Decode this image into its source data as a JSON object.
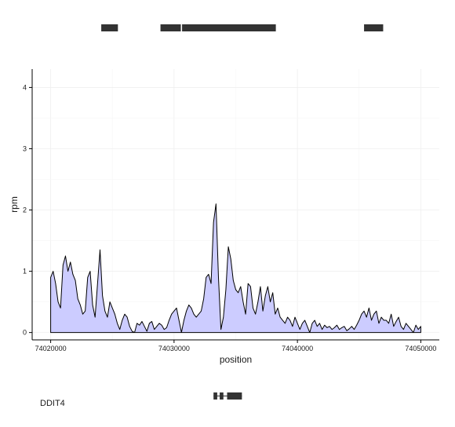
{
  "chart_data": {
    "type": "area",
    "xlabel": "position",
    "ylabel": "rpm",
    "xlim": [
      74018500,
      74051500
    ],
    "ylim": [
      -0.12,
      4.3
    ],
    "x_ticks": [
      74020000,
      74030000,
      74040000,
      74050000
    ],
    "x_tick_labels": [
      "74020000",
      "74030000",
      "74040000",
      "74050000"
    ],
    "y_ticks": [
      0,
      1,
      2,
      3,
      4
    ],
    "y_tick_labels": [
      "0",
      "1",
      "2",
      "3",
      "4"
    ],
    "grid": true,
    "fill_color": "#ccccff",
    "line_color": "#000000",
    "series": [
      {
        "x": [
          74020000,
          74020200,
          74020400,
          74020600,
          74020800,
          74021000,
          74021200,
          74021400,
          74021600,
          74021800,
          74022000,
          74022200,
          74022400,
          74022600,
          74022800,
          74023000,
          74023200,
          74023400,
          74023600,
          74023800,
          74024000,
          74024200,
          74024400,
          74024600,
          74024800,
          74025000,
          74025200,
          74025400,
          74025600,
          74025800,
          74026000,
          74026200,
          74026400,
          74026600,
          74026800,
          74027000,
          74027200,
          74027400,
          74027600,
          74027800,
          74028000,
          74028200,
          74028400,
          74028600,
          74028800,
          74029000,
          74029200,
          74029400,
          74029600,
          74029800,
          74030000,
          74030200,
          74030400,
          74030600,
          74030800,
          74031000,
          74031200,
          74031400,
          74031600,
          74031800,
          74032000,
          74032200,
          74032400,
          74032600,
          74032800,
          74033000,
          74033200,
          74033400,
          74033600,
          74033800,
          74034000,
          74034200,
          74034400,
          74034600,
          74034800,
          74035000,
          74035200,
          74035400,
          74035600,
          74035800,
          74036000,
          74036200,
          74036400,
          74036600,
          74036800,
          74037000,
          74037200,
          74037400,
          74037600,
          74037800,
          74038000,
          74038200,
          74038400,
          74038600,
          74038800,
          74039000,
          74039200,
          74039400,
          74039600,
          74039800,
          74040000,
          74040200,
          74040400,
          74040600,
          74040800,
          74041000,
          74041200,
          74041400,
          74041600,
          74041800,
          74042000,
          74042200,
          74042400,
          74042600,
          74042800,
          74043000,
          74043200,
          74043400,
          74043600,
          74043800,
          74044000,
          74044200,
          74044400,
          74044600,
          74044800,
          74045000,
          74045200,
          74045400,
          74045600,
          74045800,
          74046000,
          74046200,
          74046400,
          74046600,
          74046800,
          74047000,
          74047200,
          74047400,
          74047600,
          74047800,
          74048000,
          74048200,
          74048400,
          74048600,
          74048800,
          74049000,
          74049200,
          74049400,
          74049600,
          74049800,
          74050000
        ],
        "values": [
          0.9,
          1.0,
          0.8,
          0.5,
          0.4,
          1.1,
          1.25,
          1.0,
          1.15,
          0.95,
          0.85,
          0.55,
          0.45,
          0.3,
          0.35,
          0.9,
          1.0,
          0.45,
          0.25,
          0.8,
          1.35,
          0.6,
          0.35,
          0.25,
          0.5,
          0.4,
          0.3,
          0.15,
          0.05,
          0.2,
          0.3,
          0.25,
          0.1,
          0.02,
          0.0,
          0.15,
          0.12,
          0.18,
          0.1,
          0.02,
          0.15,
          0.18,
          0.05,
          0.1,
          0.15,
          0.12,
          0.05,
          0.08,
          0.2,
          0.3,
          0.35,
          0.4,
          0.2,
          0.0,
          0.2,
          0.35,
          0.45,
          0.4,
          0.3,
          0.25,
          0.3,
          0.35,
          0.55,
          0.9,
          0.95,
          0.8,
          1.8,
          2.1,
          0.9,
          0.05,
          0.25,
          0.7,
          1.4,
          1.2,
          0.85,
          0.7,
          0.65,
          0.75,
          0.5,
          0.3,
          0.8,
          0.75,
          0.4,
          0.3,
          0.5,
          0.75,
          0.35,
          0.6,
          0.75,
          0.5,
          0.65,
          0.3,
          0.4,
          0.25,
          0.2,
          0.15,
          0.25,
          0.2,
          0.1,
          0.25,
          0.15,
          0.05,
          0.15,
          0.2,
          0.1,
          0.0,
          0.15,
          0.2,
          0.1,
          0.15,
          0.05,
          0.12,
          0.08,
          0.1,
          0.05,
          0.08,
          0.12,
          0.05,
          0.08,
          0.1,
          0.03,
          0.06,
          0.1,
          0.05,
          0.12,
          0.2,
          0.3,
          0.35,
          0.25,
          0.4,
          0.2,
          0.3,
          0.35,
          0.15,
          0.25,
          0.2,
          0.2,
          0.15,
          0.3,
          0.1,
          0.18,
          0.25,
          0.1,
          0.05,
          0.15,
          0.1,
          0.05,
          0.0,
          0.12,
          0.05,
          0.1
        ],
        "values_note": ""
      }
    ]
  },
  "top_track": {
    "blocks": [
      {
        "start": 74024100,
        "end": 74025450
      },
      {
        "start": 74028900,
        "end": 74030550
      },
      {
        "start": 74030650,
        "end": 74038250
      },
      {
        "start": 74045400,
        "end": 74046950
      }
    ]
  },
  "gene_track": {
    "gene_name": "DDIT4",
    "exons": [
      {
        "start": 74033200,
        "end": 74033500
      },
      {
        "start": 74033700,
        "end": 74034000
      },
      {
        "start": 74034300,
        "end": 74035500
      }
    ],
    "intron": {
      "start": 74033200,
      "end": 74035500
    }
  }
}
